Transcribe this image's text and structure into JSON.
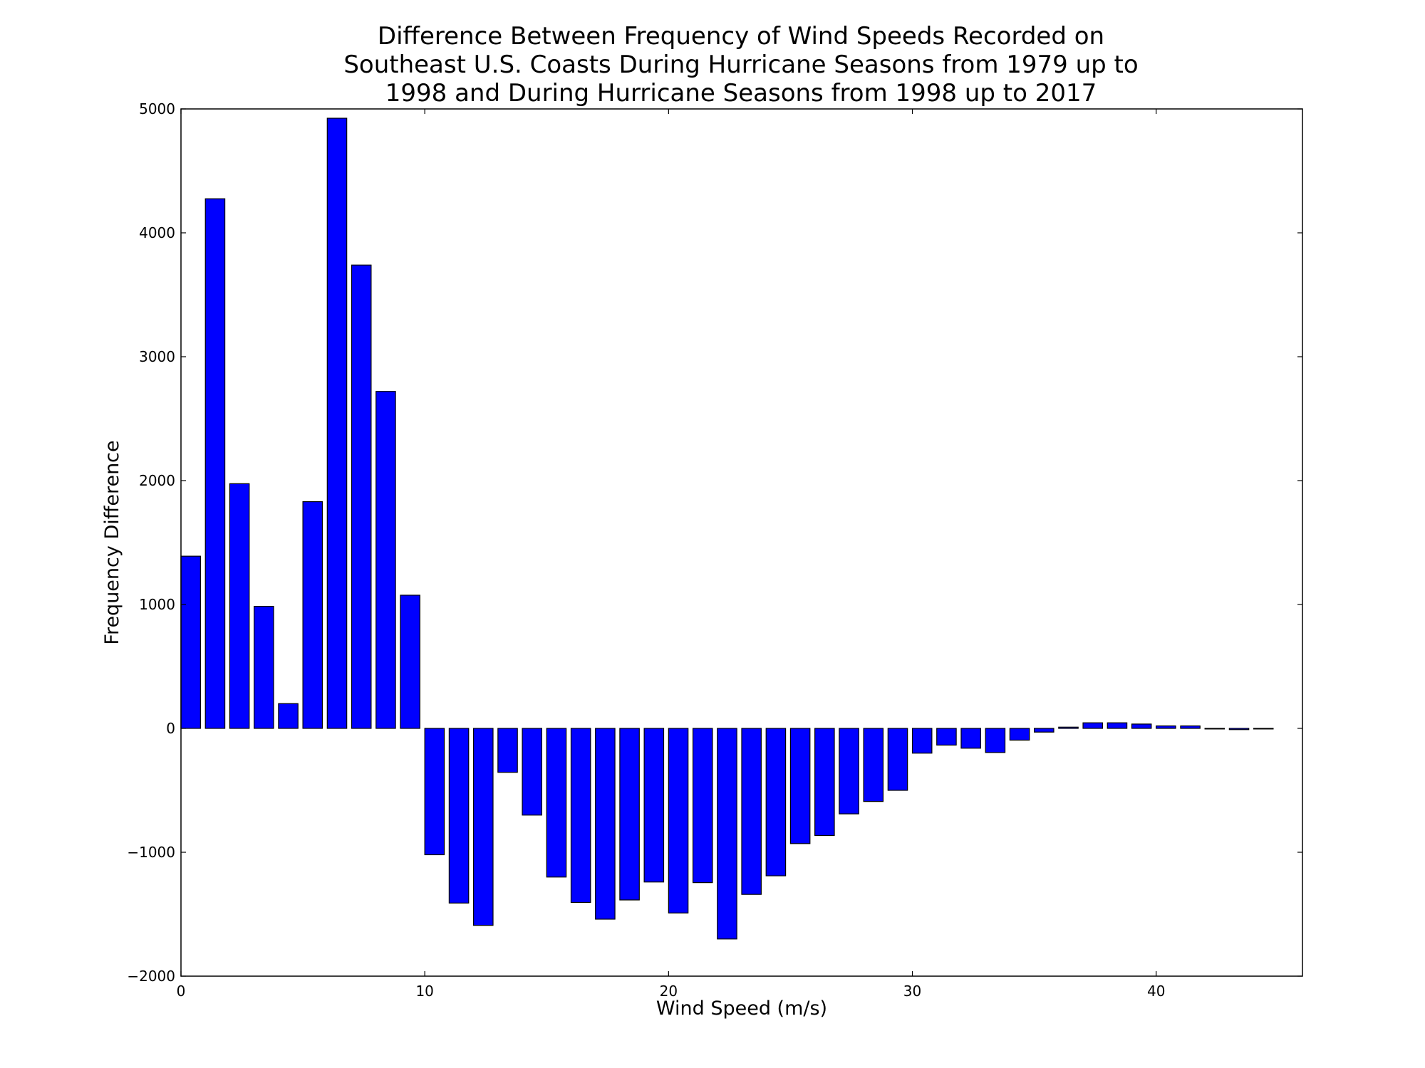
{
  "chart_data": {
    "type": "bar",
    "title_lines": [
      "Difference Between Frequency of Wind Speeds Recorded on",
      "Southeast U.S. Coasts During Hurricane Seasons from 1979 up to",
      "1998 and During Hurricane Seasons from 1998 up to 2017"
    ],
    "xlabel": "Wind Speed (m/s)",
    "ylabel": "Frequency Difference",
    "xlim": [
      0,
      46
    ],
    "ylim": [
      -2000,
      5000
    ],
    "xticks": [
      0,
      10,
      20,
      30,
      40
    ],
    "xtick_labels": [
      "0",
      "10",
      "20",
      "30",
      "40"
    ],
    "yticks": [
      -2000,
      -1000,
      0,
      1000,
      2000,
      3000,
      4000,
      5000
    ],
    "ytick_labels": [
      "−2000",
      "−1000",
      "0",
      "1000",
      "2000",
      "3000",
      "4000",
      "5000"
    ],
    "bar_color": "#0000ff",
    "bar_width": 0.8,
    "x": [
      0,
      1,
      2,
      3,
      4,
      5,
      6,
      7,
      8,
      9,
      10,
      11,
      12,
      13,
      14,
      15,
      16,
      17,
      18,
      19,
      20,
      21,
      22,
      23,
      24,
      25,
      26,
      27,
      28,
      29,
      30,
      31,
      32,
      33,
      34,
      35,
      36,
      37,
      38,
      39,
      40,
      41,
      42,
      43,
      44
    ],
    "values": [
      1390,
      4275,
      1975,
      985,
      200,
      1830,
      4925,
      3740,
      2720,
      1075,
      -1020,
      -1410,
      -1590,
      -355,
      -700,
      -1200,
      -1405,
      -1540,
      -1385,
      -1240,
      -1490,
      -1245,
      -1700,
      -1340,
      -1190,
      -930,
      -865,
      -690,
      -590,
      -500,
      -200,
      -135,
      -160,
      -195,
      -95,
      -30,
      10,
      45,
      45,
      35,
      20,
      20,
      -5,
      -10,
      -5
    ],
    "grid": false
  }
}
